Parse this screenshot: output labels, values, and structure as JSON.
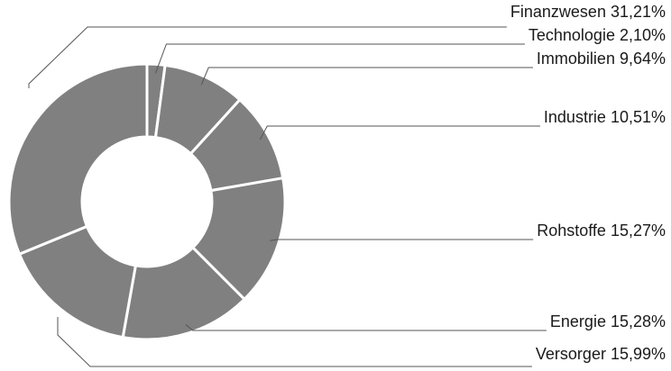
{
  "chart_data": {
    "type": "pie",
    "donut": true,
    "legend": "none",
    "slices": [
      {
        "label": "Technologie",
        "value": 2.1,
        "value_label": "2,10%"
      },
      {
        "label": "Immobilien",
        "value": 9.64,
        "value_label": "9,64%"
      },
      {
        "label": "Industrie",
        "value": 10.51,
        "value_label": "10,51%"
      },
      {
        "label": "Rohstoffe",
        "value": 15.27,
        "value_label": "15,27%"
      },
      {
        "label": "Energie",
        "value": 15.28,
        "value_label": "15,28%"
      },
      {
        "label": "Versorger",
        "value": 15.99,
        "value_label": "15,99%"
      },
      {
        "label": "Finanzwesen",
        "value": 31.21,
        "value_label": "31,21%"
      }
    ],
    "colors": {
      "slice": "#808080",
      "separator": "#ffffff",
      "leader": "#555555",
      "text": "#1a1a1a"
    }
  }
}
